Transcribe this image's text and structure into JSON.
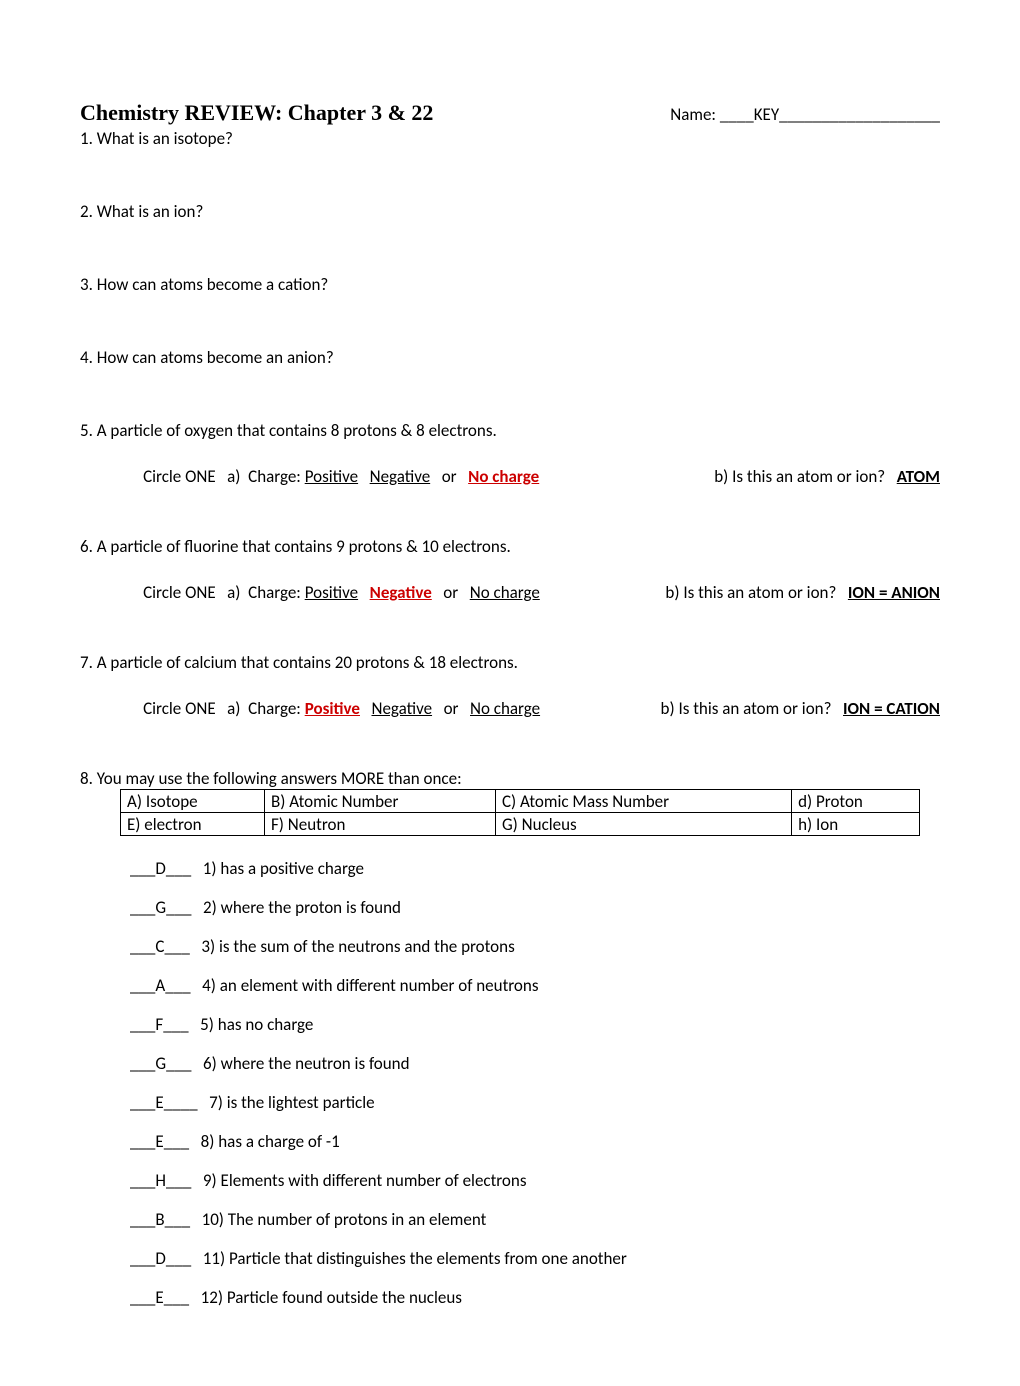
{
  "header": {
    "title": "Chemistry REVIEW: Chapter 3 & 22",
    "name_label": "Name: ____",
    "name_value": "KEY",
    "name_trail": "___________________"
  },
  "questions": {
    "q1": "1. What is an isotope?",
    "q2": "2. What is an ion?",
    "q3": "3. How can atoms become a cation?",
    "q4": "4. How can atoms become an anion?",
    "q5": "5. A particle of oxygen that contains 8 protons & 8 electrons.",
    "q5_sub_prefix": "Circle ONE   a)  Charge: ",
    "q5_positive": "Positive",
    "q5_sep1": "   ",
    "q5_negative": "Negative",
    "q5_sep2": "   or   ",
    "q5_nocharge": "No charge",
    "q5b_label": "b) Is this an atom or ion?   ",
    "q5b_answer": "ATOM",
    "q6": "6. A particle of fluorine that contains 9 protons & 10 electrons.",
    "q6_sub_prefix": "Circle ONE   a)  Charge: ",
    "q6_positive": "Positive",
    "q6_sep1": "   ",
    "q6_negative": "Negative",
    "q6_sep2": "   or   ",
    "q6_nocharge": "No charge",
    "q6b_label": "b) Is this an atom or ion?   ",
    "q6b_answer": "ION = ANION",
    "q7": "7. A particle of calcium that contains 20 protons & 18 electrons.",
    "q7_sub_prefix": "Circle ONE   a)  Charge: ",
    "q7_positive": "Positive",
    "q7_sep1": "   ",
    "q7_negative": "Negative",
    "q7_sep2": "   or   ",
    "q7_nocharge": "No charge",
    "q7b_label": "b) Is this an atom or ion?   ",
    "q7b_answer": "ION = CATION",
    "q8intro": "8. You may use the following answers MORE than once:"
  },
  "table": {
    "r1c1": "A) Isotope",
    "r1c2": "B) Atomic Number",
    "r1c3": "C) Atomic Mass Number",
    "r1c4": "d) Proton",
    "r2c1": "E) electron",
    "r2c2": "F) Neutron",
    "r2c3": "G) Nucleus",
    "r2c4": "h)  Ion"
  },
  "matching": {
    "m1": "___D___   1) has a positive charge",
    "m2": "___G___   2) where the proton is found",
    "m3": "___C___   3) is the sum of the neutrons and the protons",
    "m4": "___A___   4) an element with different number of neutrons",
    "m5": "___F___   5) has no charge",
    "m6": "___G___   6) where the neutron is found",
    "m7": "___E____   7) is the lightest particle",
    "m8": "___E___   8) has a charge of -1",
    "m9": "___H___   9) Elements with different number of electrons",
    "m10": "___B___   10) The number of protons in an element",
    "m11": "___D___   11) Particle that distinguishes the elements from one another",
    "m12": "___E___   12) Particle found outside the nucleus"
  }
}
